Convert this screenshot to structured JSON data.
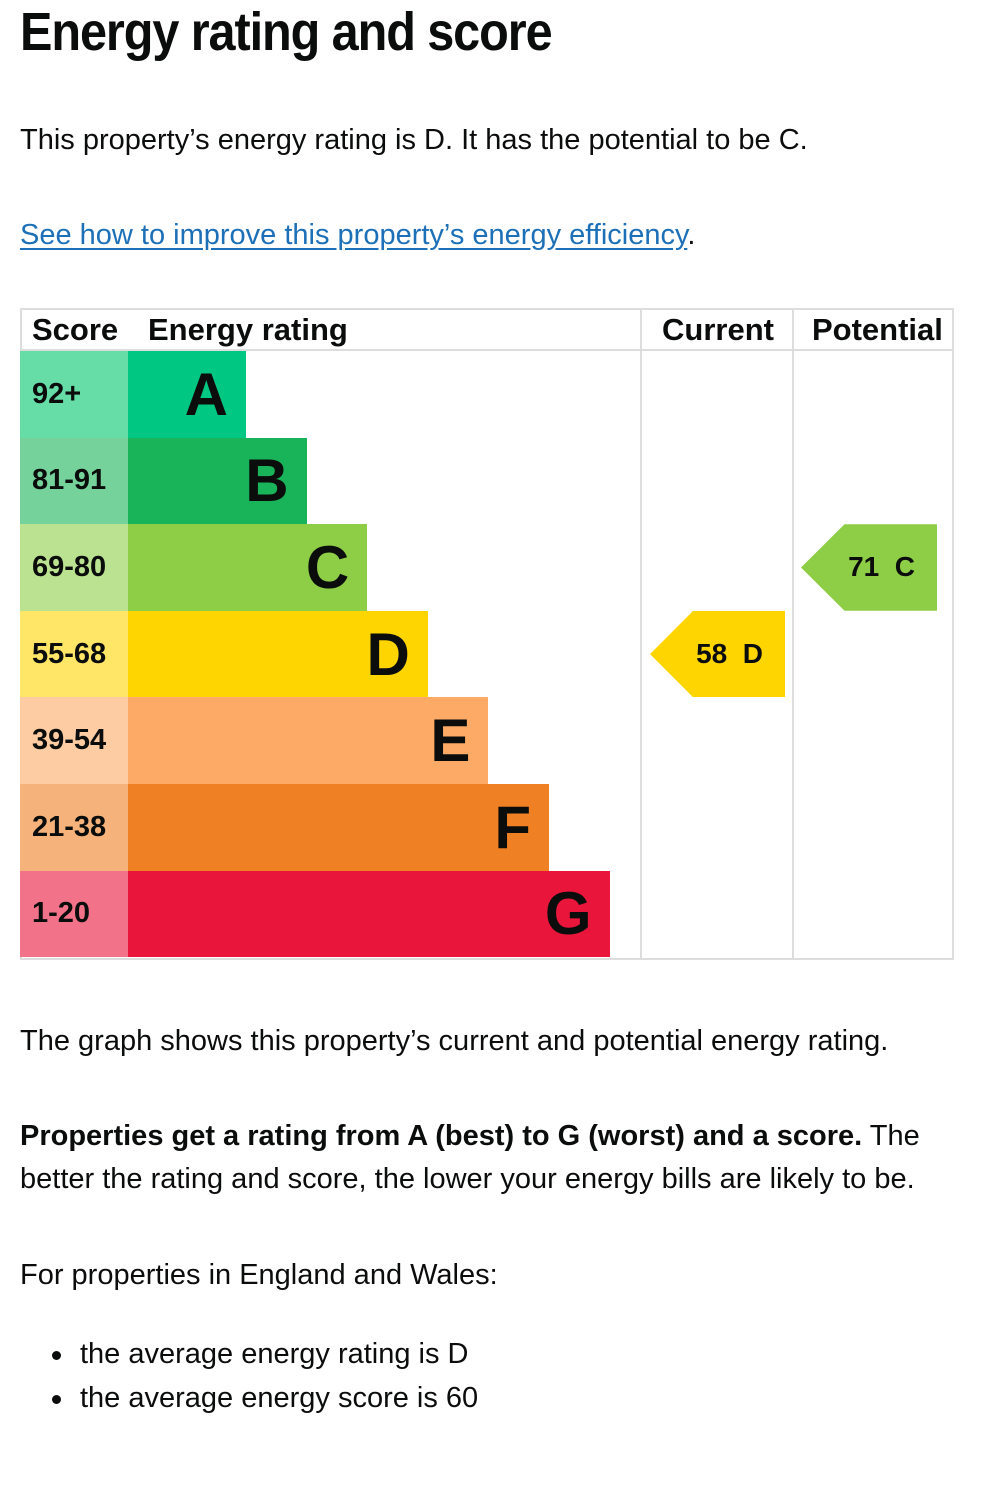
{
  "page": {
    "title": "Energy rating and score",
    "intro": "This property’s energy rating is D. It has the potential to be C.",
    "improve_link": "See how to improve this property’s energy efficiency",
    "improve_link_suffix": "."
  },
  "table": {
    "headers": {
      "score": "Score",
      "rating": "Energy rating",
      "current": "Current",
      "potential": "Potential"
    }
  },
  "chart_data": {
    "type": "table",
    "bands": [
      {
        "score_range": "92+",
        "letter": "A",
        "band_color": "#00c781",
        "score_color": "#66dda7"
      },
      {
        "score_range": "81-91",
        "letter": "B",
        "band_color": "#19b459",
        "score_color": "#75d29b"
      },
      {
        "score_range": "69-80",
        "letter": "C",
        "band_color": "#8dce46",
        "score_color": "#bbe290"
      },
      {
        "score_range": "55-68",
        "letter": "D",
        "band_color": "#ffd500",
        "score_color": "#ffe666"
      },
      {
        "score_range": "39-54",
        "letter": "E",
        "band_color": "#fcaa65",
        "score_color": "#fdcca3"
      },
      {
        "score_range": "21-38",
        "letter": "F",
        "band_color": "#ef8023",
        "score_color": "#f5b37b"
      },
      {
        "score_range": "1-20",
        "letter": "G",
        "band_color": "#e9153b",
        "score_color": "#f27389"
      }
    ],
    "current": {
      "score": 58,
      "letter": "D",
      "label": "58  D",
      "color": "#ffd500"
    },
    "potential": {
      "score": 71,
      "letter": "C",
      "label": "71  C",
      "color": "#8dce46"
    }
  },
  "body": {
    "graph_note": "The graph shows this property’s current and potential energy rating.",
    "rating_bold": "Properties get a rating from A (best) to G (worst) and a score.",
    "rating_rest": " The better the rating and score, the lower your energy bills are likely to be.",
    "regional_intro": "For properties in England and Wales:",
    "bullets": [
      "the average energy rating is D",
      "the average energy score is 60"
    ]
  }
}
